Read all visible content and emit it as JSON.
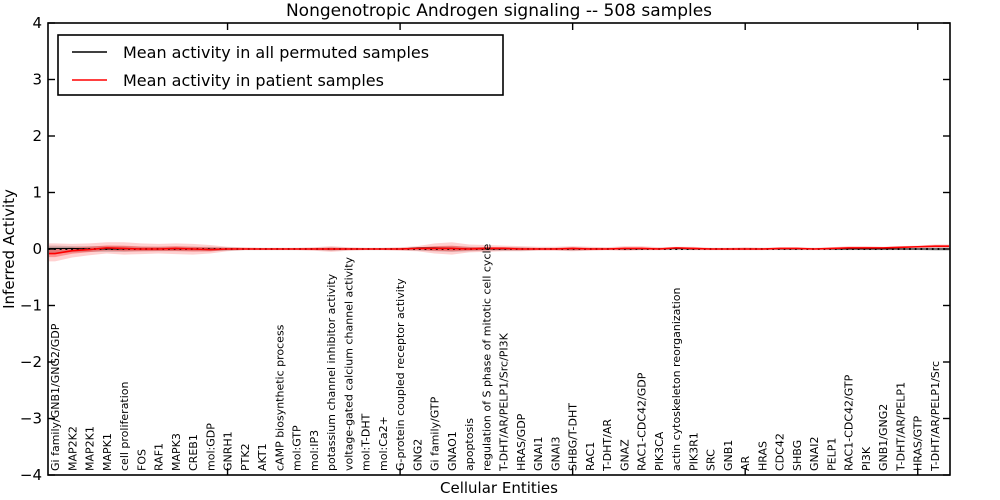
{
  "chart_data": {
    "type": "line",
    "title": "Nongenotropic Androgen signaling -- 508 samples",
    "xlabel": "Cellular Entities",
    "ylabel": "Inferred Activity",
    "ylim": [
      -4,
      4
    ],
    "ytick_values": [
      4,
      3,
      2,
      1,
      0,
      -1,
      -2,
      -3,
      -4
    ],
    "xtick_major_indices": [
      10,
      20,
      30,
      40,
      50
    ],
    "grid": false,
    "legend_position": "upper left",
    "categories": [
      "Gi family/GNB1/GNG2/GDP",
      "MAP2K2",
      "MAP2K1",
      "MAPK1",
      "cell proliferation",
      "FOS",
      "RAF1",
      "MAPK3",
      "CREB1",
      "mol:GDP",
      "GNRH1",
      "PTK2",
      "AKT1",
      "cAMP biosynthetic process",
      "mol:GTP",
      "mol:IP3",
      "potassium channel inhibitor activity",
      "voltage-gated calcium channel activity",
      "mol:T-DHT",
      "mol:Ca2+",
      "G-protein coupled receptor activity",
      "GNG2",
      "Gi family/GTP",
      "GNAO1",
      "apoptosis",
      "regulation of S phase of mitotic cell cycle",
      "T-DHT/AR/PELP1/Src/PI3K",
      "HRAS/GDP",
      "GNAI1",
      "GNAI3",
      "SHBG/T-DHT",
      "RAC1",
      "T-DHT/AR",
      "GNAZ",
      "RAC1-CDC42/GDP",
      "PIK3CA",
      "actin cytoskeleton reorganization",
      "PIK3R1",
      "SRC",
      "GNB1",
      "AR",
      "HRAS",
      "CDC42",
      "SHBG",
      "GNAI2",
      "PELP1",
      "RAC1-CDC42/GTP",
      "PI3K",
      "GNB1/GNG2",
      "T-DHT/AR/PELP1",
      "HRAS/GTP",
      "T-DHT/AR/PELP1/Src"
    ],
    "series": [
      {
        "name": "Mean activity in all permuted samples",
        "color": "#000000",
        "line_style": "solid",
        "values": [
          0.01,
          0.01,
          0.0,
          0.0,
          0.0,
          0.0,
          0.0,
          0.0,
          0.0,
          0.0,
          0.0,
          0.0,
          0.0,
          0.0,
          0.0,
          0.0,
          0.0,
          0.0,
          0.0,
          0.0,
          0.0,
          0.02,
          0.02,
          0.01,
          0.0,
          0.0,
          0.0,
          0.0,
          0.0,
          0.0,
          0.0,
          0.0,
          0.0,
          0.0,
          0.0,
          0.0,
          0.01,
          0.0,
          0.0,
          0.0,
          0.0,
          0.0,
          0.0,
          0.0,
          0.0,
          0.0,
          0.0,
          0.0,
          0.0,
          0.0,
          0.0,
          0.0
        ],
        "band_upper": [
          0.06,
          0.05,
          0.05,
          0.05,
          0.05,
          0.04,
          0.04,
          0.04,
          0.04,
          0.04,
          0.03,
          0.02,
          0.02,
          0.02,
          0.02,
          0.02,
          0.03,
          0.02,
          0.02,
          0.02,
          0.02,
          0.03,
          0.04,
          0.05,
          0.04,
          0.03,
          0.03,
          0.03,
          0.02,
          0.02,
          0.03,
          0.02,
          0.02,
          0.02,
          0.02,
          0.02,
          0.02,
          0.02,
          0.02,
          0.02,
          0.02,
          0.02,
          0.02,
          0.02,
          0.02,
          0.02,
          0.02,
          0.02,
          0.02,
          0.02,
          0.02,
          0.03
        ],
        "band_lower": [
          -0.08,
          -0.06,
          -0.05,
          -0.05,
          -0.05,
          -0.04,
          -0.04,
          -0.04,
          -0.04,
          -0.04,
          -0.03,
          -0.02,
          -0.02,
          -0.02,
          -0.02,
          -0.02,
          -0.03,
          -0.02,
          -0.02,
          -0.02,
          -0.02,
          -0.03,
          -0.04,
          -0.05,
          -0.04,
          -0.03,
          -0.03,
          -0.03,
          -0.02,
          -0.02,
          -0.03,
          -0.02,
          -0.02,
          -0.02,
          -0.02,
          -0.02,
          -0.02,
          -0.02,
          -0.02,
          -0.02,
          -0.02,
          -0.02,
          -0.02,
          -0.02,
          -0.02,
          -0.02,
          -0.02,
          -0.02,
          -0.02,
          -0.02,
          -0.02,
          -0.03
        ],
        "band_color": "#999999",
        "band_alpha": 0.45
      },
      {
        "name": "Mean activity in patient samples",
        "color": "#ff0000",
        "line_style": "solid",
        "values": [
          -0.08,
          -0.03,
          -0.01,
          0.02,
          0.01,
          0.0,
          0.0,
          0.01,
          0.0,
          -0.01,
          0.0,
          0.0,
          0.0,
          0.0,
          0.0,
          0.0,
          0.0,
          0.0,
          0.0,
          0.0,
          0.0,
          0.01,
          0.01,
          0.01,
          0.0,
          0.01,
          0.01,
          0.0,
          0.0,
          0.0,
          0.01,
          0.0,
          0.0,
          0.01,
          0.01,
          0.0,
          0.02,
          0.01,
          0.0,
          0.0,
          0.0,
          0.0,
          0.01,
          0.01,
          0.0,
          0.01,
          0.02,
          0.02,
          0.02,
          0.03,
          0.04,
          0.05
        ],
        "band_upper": [
          0.1,
          0.09,
          0.1,
          0.12,
          0.12,
          0.1,
          0.09,
          0.1,
          0.09,
          0.07,
          0.04,
          0.03,
          0.02,
          0.02,
          0.02,
          0.03,
          0.05,
          0.03,
          0.02,
          0.02,
          0.03,
          0.05,
          0.1,
          0.12,
          0.08,
          0.07,
          0.06,
          0.05,
          0.04,
          0.04,
          0.05,
          0.04,
          0.03,
          0.05,
          0.05,
          0.03,
          0.04,
          0.04,
          0.02,
          0.02,
          0.03,
          0.02,
          0.03,
          0.03,
          0.02,
          0.03,
          0.05,
          0.05,
          0.04,
          0.05,
          0.06,
          0.08
        ],
        "band_lower": [
          -0.22,
          -0.15,
          -0.11,
          -0.08,
          -0.1,
          -0.09,
          -0.08,
          -0.09,
          -0.1,
          -0.08,
          -0.04,
          -0.02,
          -0.02,
          -0.02,
          -0.02,
          -0.03,
          -0.05,
          -0.03,
          -0.02,
          -0.02,
          -0.03,
          -0.04,
          -0.08,
          -0.1,
          -0.06,
          -0.05,
          -0.04,
          -0.04,
          -0.03,
          -0.03,
          -0.04,
          -0.03,
          -0.02,
          -0.03,
          -0.02,
          -0.02,
          -0.01,
          -0.02,
          -0.02,
          -0.02,
          -0.02,
          -0.02,
          -0.01,
          -0.01,
          -0.01,
          -0.01,
          -0.01,
          0.0,
          0.0,
          0.01,
          0.02,
          0.02
        ],
        "band_color": "#ff0000",
        "band_alpha": 0.18
      }
    ],
    "zero_line": {
      "value": 0,
      "style": "dotted",
      "color": "#000000"
    }
  },
  "legend": {
    "items": [
      {
        "label": "Mean activity in all permuted samples",
        "color": "#000000"
      },
      {
        "label": "Mean activity in patient samples",
        "color": "#ff0000"
      }
    ]
  },
  "colors": {
    "patient": "#ff0000",
    "permuted": "#000000",
    "background": "#ffffff"
  }
}
